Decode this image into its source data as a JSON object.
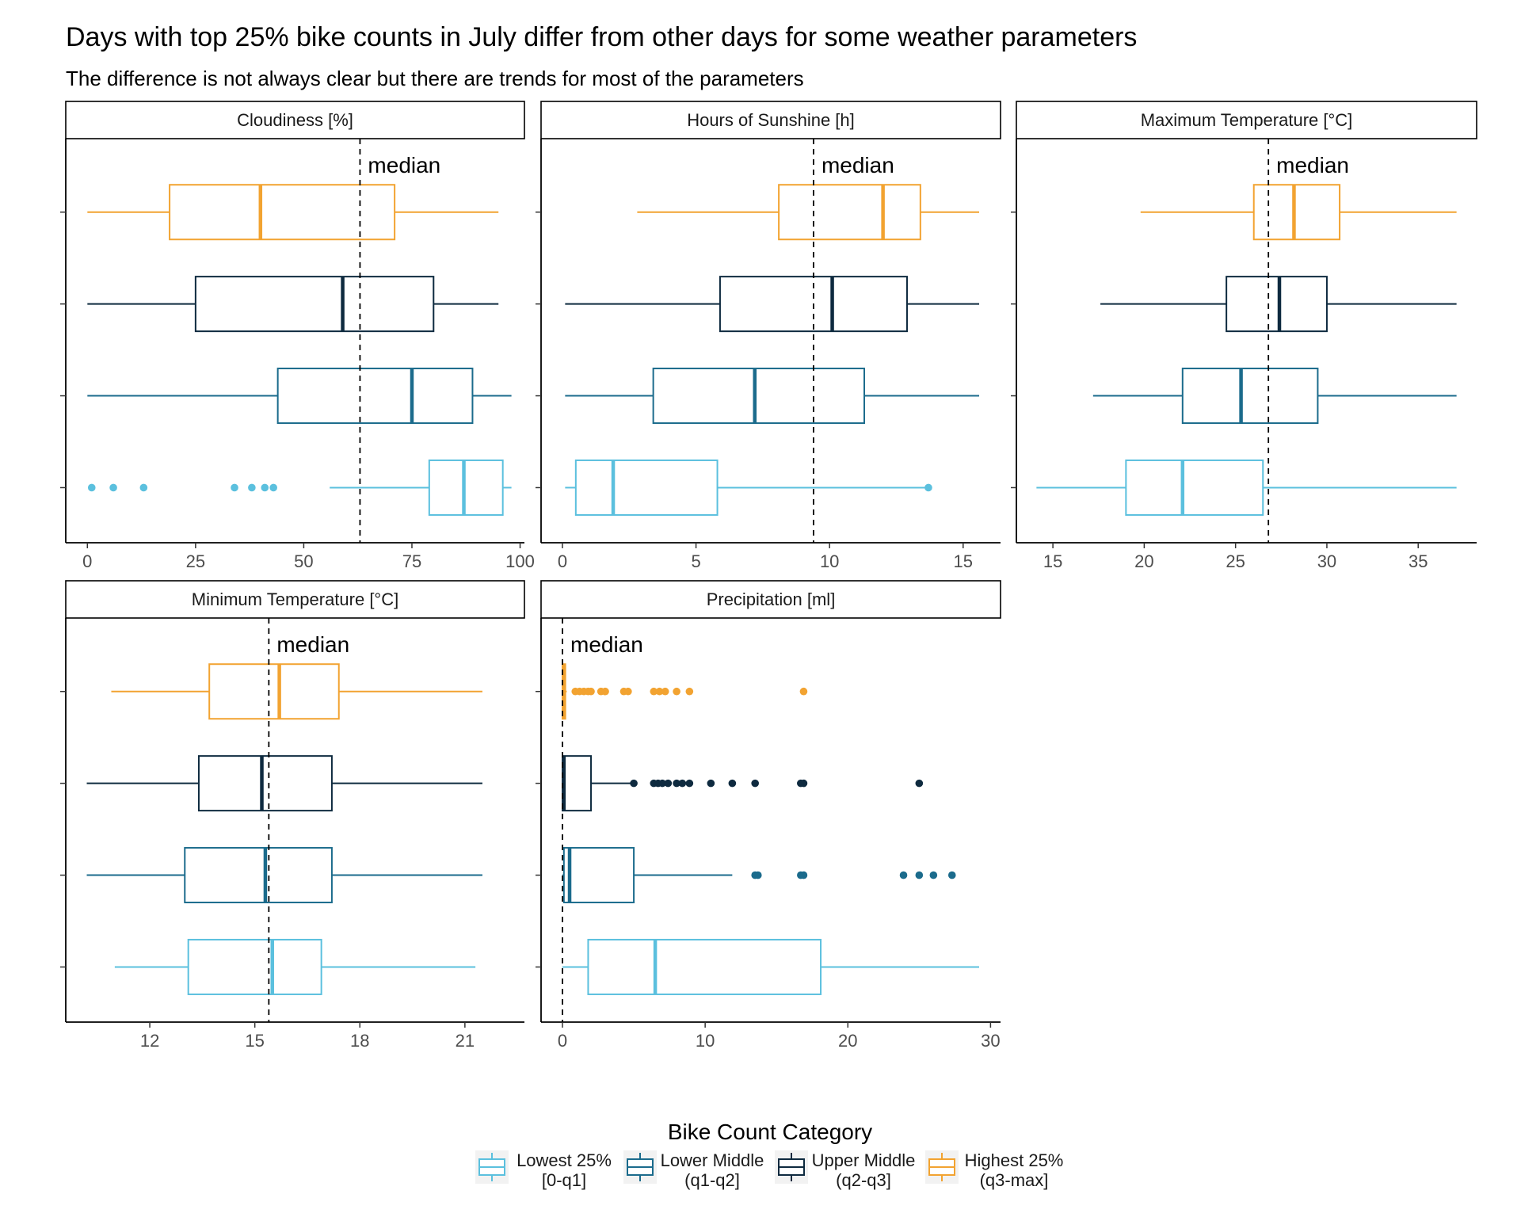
{
  "title": "Days with top 25% bike counts in July differ from other days for some weather parameters",
  "subtitle": "The difference is not always clear but there are trends for most of the parameters",
  "median_label": "median",
  "legend": {
    "title": "Bike Count Category",
    "items": [
      {
        "line1": "Lowest 25%",
        "line2": "[0-q1]",
        "color": "#5BC0DE"
      },
      {
        "line1": "Lower Middle",
        "line2": "(q1-q2]",
        "color": "#1B6B8C"
      },
      {
        "line1": "Upper Middle",
        "line2": "(q2-q3]",
        "color": "#0E2A3F"
      },
      {
        "line1": "Highest 25%",
        "line2": "(q3-max]",
        "color": "#F2A331"
      }
    ]
  },
  "chart_data": [
    {
      "type": "boxplot",
      "title": "Cloudiness [%]",
      "xlim": [
        -5,
        101
      ],
      "ticks": [
        0,
        25,
        50,
        75,
        100
      ],
      "median_line": 63,
      "series": [
        {
          "name": "Lowest 25%",
          "whisker_low": 56,
          "q1": 79,
          "median": 87,
          "q3": 96,
          "whisker_high": 98,
          "outliers": [
            1,
            6,
            13,
            34,
            38,
            41,
            43
          ]
        },
        {
          "name": "Lower Middle",
          "whisker_low": 0,
          "q1": 44,
          "median": 75,
          "q3": 89,
          "whisker_high": 98,
          "outliers": []
        },
        {
          "name": "Upper Middle",
          "whisker_low": 0,
          "q1": 25,
          "median": 59,
          "q3": 80,
          "whisker_high": 95,
          "outliers": []
        },
        {
          "name": "Highest 25%",
          "whisker_low": 0,
          "q1": 19,
          "median": 40,
          "q3": 71,
          "whisker_high": 95,
          "outliers": []
        }
      ]
    },
    {
      "type": "boxplot",
      "title": "Hours of Sunshine [h]",
      "xlim": [
        -0.8,
        16.4
      ],
      "ticks": [
        0,
        5,
        10,
        15
      ],
      "median_line": 9.4,
      "series": [
        {
          "name": "Lowest 25%",
          "whisker_low": 0.1,
          "q1": 0.5,
          "median": 1.9,
          "q3": 5.8,
          "whisker_high": 13.7,
          "outliers": [
            13.7
          ]
        },
        {
          "name": "Lower Middle",
          "whisker_low": 0.1,
          "q1": 3.4,
          "median": 7.2,
          "q3": 11.3,
          "whisker_high": 15.6,
          "outliers": []
        },
        {
          "name": "Upper Middle",
          "whisker_low": 0.1,
          "q1": 5.9,
          "median": 10.1,
          "q3": 12.9,
          "whisker_high": 15.6,
          "outliers": []
        },
        {
          "name": "Highest 25%",
          "whisker_low": 2.8,
          "q1": 8.1,
          "median": 12.0,
          "q3": 13.4,
          "whisker_high": 15.6,
          "outliers": []
        }
      ]
    },
    {
      "type": "boxplot",
      "title": "Maximum Temperature [°C]",
      "xlim": [
        13.0,
        38.2
      ],
      "ticks": [
        15,
        20,
        25,
        30,
        35
      ],
      "median_line": 26.8,
      "series": [
        {
          "name": "Lowest 25%",
          "whisker_low": 14.1,
          "q1": 19.0,
          "median": 22.1,
          "q3": 26.5,
          "whisker_high": 37.1,
          "outliers": []
        },
        {
          "name": "Lower Middle",
          "whisker_low": 17.2,
          "q1": 22.1,
          "median": 25.3,
          "q3": 29.5,
          "whisker_high": 37.1,
          "outliers": []
        },
        {
          "name": "Upper Middle",
          "whisker_low": 17.6,
          "q1": 24.5,
          "median": 27.4,
          "q3": 30.0,
          "whisker_high": 37.1,
          "outliers": []
        },
        {
          "name": "Highest 25%",
          "whisker_low": 19.8,
          "q1": 26.0,
          "median": 28.2,
          "q3": 30.7,
          "whisker_high": 37.1,
          "outliers": []
        }
      ]
    },
    {
      "type": "boxplot",
      "title": "Minimum Temperature [°C]",
      "xlim": [
        9.6,
        22.7
      ],
      "ticks": [
        12,
        15,
        18,
        21
      ],
      "median_line": 15.4,
      "series": [
        {
          "name": "Lowest 25%",
          "whisker_low": 11.0,
          "q1": 13.1,
          "median": 15.5,
          "q3": 16.9,
          "whisker_high": 21.3,
          "outliers": []
        },
        {
          "name": "Lower Middle",
          "whisker_low": 10.2,
          "q1": 13.0,
          "median": 15.3,
          "q3": 17.2,
          "whisker_high": 21.5,
          "outliers": []
        },
        {
          "name": "Upper Middle",
          "whisker_low": 10.2,
          "q1": 13.4,
          "median": 15.2,
          "q3": 17.2,
          "whisker_high": 21.5,
          "outliers": []
        },
        {
          "name": "Highest 25%",
          "whisker_low": 10.9,
          "q1": 13.7,
          "median": 15.7,
          "q3": 17.4,
          "whisker_high": 21.5,
          "outliers": []
        }
      ]
    },
    {
      "type": "boxplot",
      "title": "Precipitation  [ml]",
      "xlim": [
        -1.5,
        30.7
      ],
      "ticks": [
        0,
        10,
        20,
        30
      ],
      "median_line": 0,
      "series": [
        {
          "name": "Lowest 25%",
          "whisker_low": 0,
          "q1": 1.8,
          "median": 6.5,
          "q3": 18.1,
          "whisker_high": 29.2,
          "outliers": []
        },
        {
          "name": "Lower Middle",
          "whisker_low": 0,
          "q1": 0.1,
          "median": 0.5,
          "q3": 5.0,
          "whisker_high": 11.9,
          "outliers": [
            13.5,
            13.7,
            16.7,
            16.9,
            23.9,
            25.0,
            26.0,
            27.3
          ]
        },
        {
          "name": "Upper Middle",
          "whisker_low": 0,
          "q1": 0,
          "median": 0.1,
          "q3": 2.0,
          "whisker_high": 4.8,
          "outliers": [
            5.0,
            6.4,
            6.7,
            7.0,
            7.4,
            8.0,
            8.4,
            8.9,
            10.4,
            11.9,
            13.5,
            16.7,
            16.9,
            25.0
          ]
        },
        {
          "name": "Highest 25%",
          "whisker_low": 0,
          "q1": 0,
          "median": 0.1,
          "q3": 0.2,
          "whisker_high": 0.3,
          "outliers": [
            0.9,
            1.2,
            1.5,
            1.8,
            2.0,
            2.7,
            3.0,
            4.3,
            4.6,
            6.4,
            6.8,
            7.2,
            8.0,
            8.9,
            16.9
          ]
        }
      ]
    }
  ]
}
